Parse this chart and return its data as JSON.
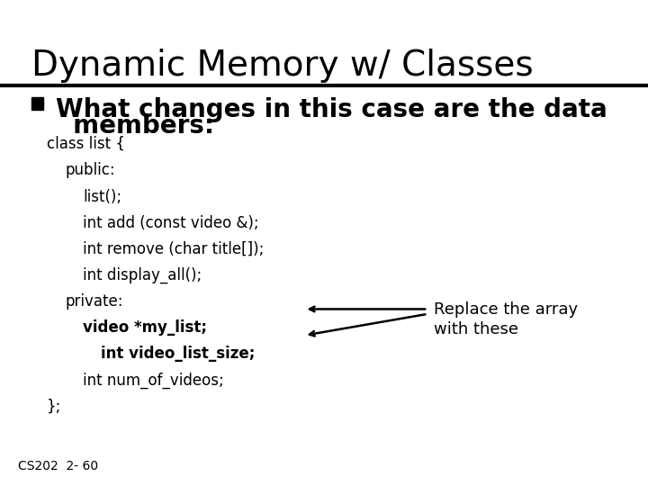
{
  "title": "Dynamic Memory w/ Classes",
  "bullet_line1": "What changes in this case are the data",
  "bullet_line2": "  members:",
  "code_lines": [
    {
      "text": "class list {",
      "indent": 0,
      "bold": false
    },
    {
      "text": "public:",
      "indent": 1,
      "bold": false
    },
    {
      "text": "list();",
      "indent": 2,
      "bold": false
    },
    {
      "text": "int add (const video &);",
      "indent": 2,
      "bold": false
    },
    {
      "text": "int remove (char title[]);",
      "indent": 2,
      "bold": false
    },
    {
      "text": "int display_all();",
      "indent": 2,
      "bold": false
    },
    {
      "text": "private:",
      "indent": 1,
      "bold": false
    },
    {
      "text": "video *my_list;",
      "indent": 2,
      "bold": true
    },
    {
      "text": "int video_list_size;",
      "indent": 3,
      "bold": true
    },
    {
      "text": "int num_of_videos;",
      "indent": 2,
      "bold": false
    },
    {
      "text": "};",
      "indent": 0,
      "bold": false
    }
  ],
  "annotation_line1": "Replace the array",
  "annotation_line2": "with these",
  "footer_text": "CS202  2- 60",
  "bg_color": "#ffffff",
  "text_color": "#000000",
  "title_fontsize": 28,
  "bullet_fontsize": 20,
  "code_fontsize": 12,
  "footer_fontsize": 10,
  "annotation_fontsize": 13
}
